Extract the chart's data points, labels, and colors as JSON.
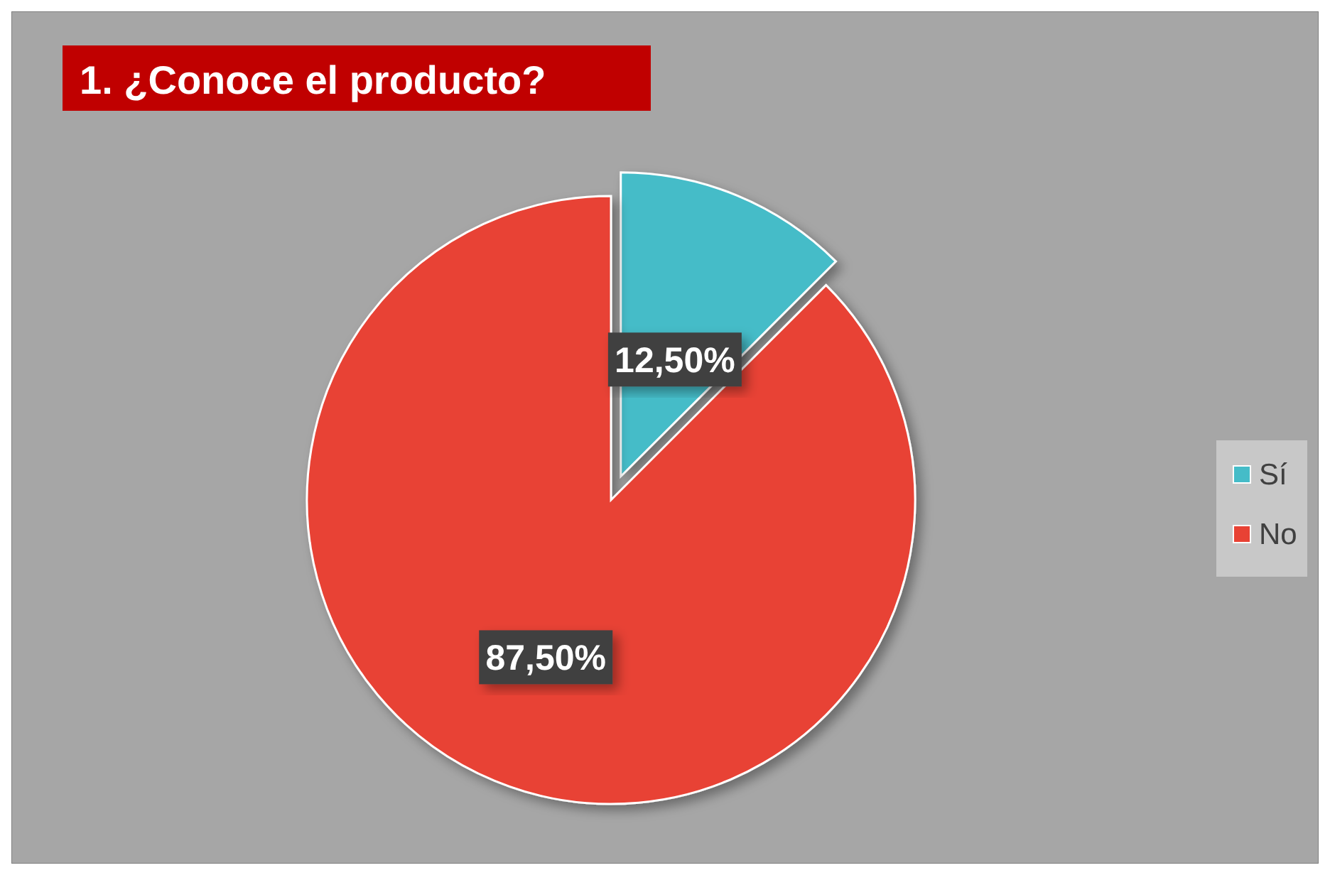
{
  "chart_data": {
    "type": "pie",
    "title": "1. ¿Conoce el producto?",
    "categories": [
      "Sí",
      "No"
    ],
    "values": [
      12.5,
      87.5
    ],
    "colors": [
      "#45bcc8",
      "#e84234"
    ],
    "value_labels": [
      "12,50%",
      "87,50%"
    ],
    "legend": "right"
  }
}
